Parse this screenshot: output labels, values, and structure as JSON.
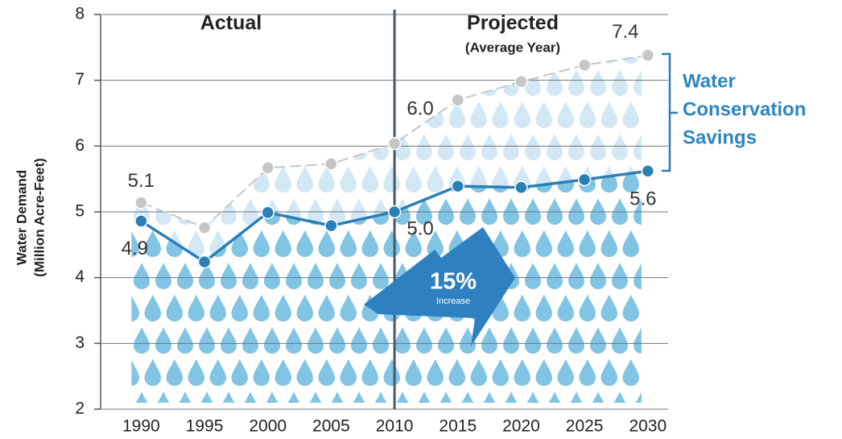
{
  "chart_data": {
    "type": "line",
    "y_label": [
      "Water Demand",
      "(Million Acre-Feet)"
    ],
    "x": [
      1990,
      1995,
      2000,
      2005,
      2010,
      2015,
      2020,
      2025,
      2030
    ],
    "xlim": [
      1986.8,
      2031.6
    ],
    "xticks": [
      1990,
      1995,
      2000,
      2005,
      2010,
      2015,
      2020,
      2025,
      2030
    ],
    "ylim": [
      2,
      8
    ],
    "yticks": [
      2,
      3,
      4,
      5,
      6,
      7,
      8
    ],
    "grid": true,
    "divider_x": 2010,
    "series": [
      {
        "color": "#c4c6c8",
        "dashed": true,
        "values": [
          5.14,
          4.76,
          5.67,
          5.73,
          6.04,
          6.7,
          6.98,
          7.23,
          7.38
        ],
        "value_labels": [
          "5.1",
          null,
          null,
          null,
          "6.0",
          null,
          null,
          null,
          "7.4"
        ]
      },
      {
        "color": "#2b7fb6",
        "dashed": false,
        "values": [
          4.86,
          4.24,
          4.99,
          4.79,
          5.0,
          5.39,
          5.37,
          5.49,
          5.62
        ],
        "value_labels": [
          "4.9",
          null,
          null,
          null,
          "5.0",
          null,
          null,
          null,
          "5.6"
        ]
      }
    ],
    "annotations": {
      "actual": "Actual",
      "projected": "Projected",
      "projected_note": "(Average Year)",
      "savings": [
        "Water",
        "Conservation",
        "Savings"
      ],
      "increase_value": "15%",
      "increase_label": "Increase"
    }
  }
}
